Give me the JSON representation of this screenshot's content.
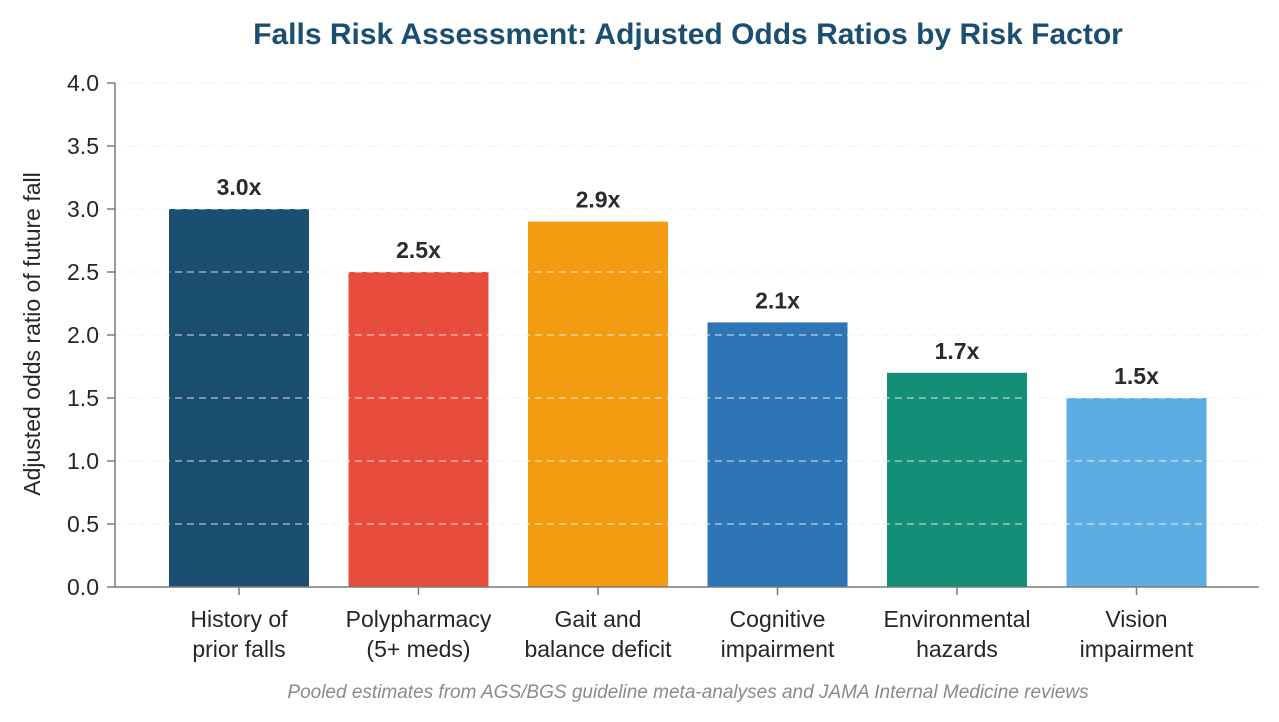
{
  "chart_data": {
    "type": "bar",
    "title": "Falls Risk Assessment: Adjusted Odds Ratios by Risk Factor",
    "ylabel": "Adjusted odds ratio of future fall",
    "xlabel": "",
    "ylim": [
      0,
      4.0
    ],
    "yticks": [
      "0.0",
      "0.5",
      "1.0",
      "1.5",
      "2.0",
      "2.5",
      "3.0",
      "3.5",
      "4.0"
    ],
    "grid": true,
    "categories": [
      [
        "History of",
        "prior falls"
      ],
      [
        "Polypharmacy",
        "(5+ meds)"
      ],
      [
        "Gait and",
        "balance deficit"
      ],
      [
        "Cognitive",
        "impairment"
      ],
      [
        "Environmental",
        "hazards"
      ],
      [
        "Vision",
        "impairment"
      ]
    ],
    "values": [
      3.0,
      2.5,
      2.9,
      2.1,
      1.7,
      1.5
    ],
    "data_labels": [
      "3.0x",
      "2.5x",
      "2.9x",
      "2.1x",
      "1.7x",
      "1.5x"
    ],
    "colors": [
      "#1b4f72",
      "#e74c3c",
      "#f39c12",
      "#2e75b6",
      "#148f77",
      "#5dade2"
    ],
    "caption": "Pooled estimates from AGS/BGS guideline meta-analyses and JAMA Internal Medicine reviews"
  }
}
